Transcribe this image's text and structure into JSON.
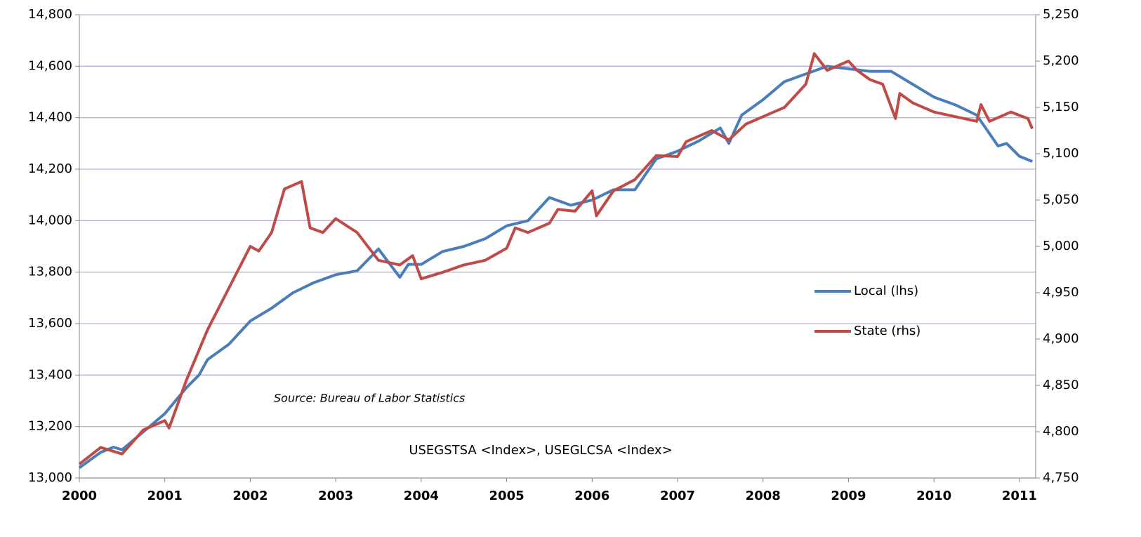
{
  "chart_data": {
    "type": "line",
    "annotations": [
      "Source: Bureau of Labor Statistics",
      "USEGSTSA <Index>, USEGLCSA <Index>"
    ],
    "xlim": [
      2000,
      2011.19
    ],
    "xticks": [
      2000,
      2001,
      2002,
      2003,
      2004,
      2005,
      2006,
      2007,
      2008,
      2009,
      2010,
      2011
    ],
    "ylim": [
      13000,
      14800
    ],
    "yticks": [
      {
        "value": 13000,
        "label": "13,000"
      },
      {
        "value": 13200,
        "label": "13,200"
      },
      {
        "value": 13400,
        "label": "13,400"
      },
      {
        "value": 13600,
        "label": "13,600"
      },
      {
        "value": 13800,
        "label": "13,800"
      },
      {
        "value": 14000,
        "label": "14,000"
      },
      {
        "value": 14200,
        "label": "14,200"
      },
      {
        "value": 14400,
        "label": "14,400"
      },
      {
        "value": 14600,
        "label": "14,600"
      },
      {
        "value": 14800,
        "label": "14,800"
      }
    ],
    "y2lim": [
      4750,
      5250
    ],
    "y2ticks": [
      {
        "value": 4750,
        "label": "4,750"
      },
      {
        "value": 4800,
        "label": "4,800"
      },
      {
        "value": 4850,
        "label": "4,850"
      },
      {
        "value": 4900,
        "label": "4,900"
      },
      {
        "value": 4950,
        "label": "4,950"
      },
      {
        "value": 5000,
        "label": "5,000"
      },
      {
        "value": 5050,
        "label": "5,050"
      },
      {
        "value": 5100,
        "label": "5,100"
      },
      {
        "value": 5150,
        "label": "5,150"
      },
      {
        "value": 5200,
        "label": "5,200"
      },
      {
        "value": 5250,
        "label": "5,250"
      }
    ],
    "grid": true,
    "series": [
      {
        "name": "Local (lhs)",
        "color": "#4a7ebb",
        "x": [
          2000,
          2000.25,
          2000.4,
          2000.5,
          2000.75,
          2001,
          2001.25,
          2001.4,
          2001.5,
          2001.75,
          2002,
          2002.25,
          2002.5,
          2002.75,
          2003,
          2003.25,
          2003.5,
          2003.75,
          2003.85,
          2004,
          2004.25,
          2004.5,
          2004.75,
          2005,
          2005.25,
          2005.5,
          2005.75,
          2006,
          2006.25,
          2006.5,
          2006.75,
          2007,
          2007.25,
          2007.5,
          2007.6,
          2007.75,
          2008,
          2008.25,
          2008.5,
          2008.75,
          2009,
          2009.25,
          2009.5,
          2009.75,
          2010,
          2010.25,
          2010.5,
          2010.75,
          2010.85,
          2011,
          2011.15
        ],
        "values": [
          13040,
          13100,
          13120,
          13110,
          13180,
          13250,
          13350,
          13400,
          13460,
          13520,
          13610,
          13660,
          13720,
          13760,
          13790,
          13805,
          13890,
          13780,
          13830,
          13830,
          13880,
          13900,
          13930,
          13980,
          14000,
          14090,
          14060,
          14080,
          14120,
          14120,
          14240,
          14270,
          14310,
          14360,
          14300,
          14410,
          14470,
          14540,
          14570,
          14600,
          14590,
          14580,
          14580,
          14530,
          14480,
          14450,
          14410,
          14290,
          14300,
          14250,
          14230
        ]
      },
      {
        "name": "State (rhs)",
        "color": "#be4b48",
        "axis": "y2",
        "x": [
          2000,
          2000.25,
          2000.5,
          2000.75,
          2001,
          2001.05,
          2001.25,
          2001.5,
          2001.75,
          2002,
          2002.1,
          2002.25,
          2002.4,
          2002.6,
          2002.7,
          2002.85,
          2003,
          2003.25,
          2003.5,
          2003.75,
          2003.9,
          2004,
          2004.25,
          2004.5,
          2004.75,
          2005,
          2005.1,
          2005.25,
          2005.5,
          2005.6,
          2005.8,
          2006,
          2006.05,
          2006.25,
          2006.5,
          2006.75,
          2007,
          2007.1,
          2007.4,
          2007.6,
          2007.8,
          2008,
          2008.25,
          2008.5,
          2008.6,
          2008.75,
          2009,
          2009.1,
          2009.25,
          2009.4,
          2009.55,
          2009.6,
          2009.75,
          2010,
          2010.25,
          2010.5,
          2010.55,
          2010.65,
          2010.9,
          2011.1,
          2011.15
        ],
        "values": [
          4765,
          4783,
          4776,
          4802,
          4812,
          4804,
          4855,
          4910,
          4955,
          5000,
          4995,
          5015,
          5062,
          5070,
          5020,
          5015,
          5030,
          5015,
          4985,
          4980,
          4990,
          4965,
          4972,
          4980,
          4985,
          4998,
          5020,
          5015,
          5025,
          5040,
          5038,
          5060,
          5033,
          5060,
          5072,
          5098,
          5097,
          5113,
          5125,
          5115,
          5132,
          5140,
          5150,
          5175,
          5208,
          5190,
          5200,
          5190,
          5180,
          5175,
          5138,
          5165,
          5155,
          5145,
          5140,
          5135,
          5153,
          5135,
          5145,
          5138,
          5127
        ]
      }
    ]
  }
}
